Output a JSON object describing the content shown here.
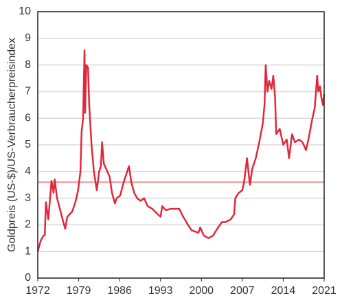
{
  "chart_data": {
    "type": "line",
    "ylabel": "Goldpreis (US-$)/US-Verbraucherpreisindex",
    "x": [
      1972,
      1972.5,
      1973,
      1973.2,
      1973.4,
      1973.8,
      1974.35,
      1974.7,
      1974.9,
      1975.3,
      1975.9,
      1976.5,
      1976.7,
      1977.05,
      1977.9,
      1978.5,
      1978.9,
      1979.3,
      1979.5,
      1979.75,
      1980.0,
      1980.1,
      1980.3,
      1980.6,
      1980.8,
      1981.2,
      1981.6,
      1982.1,
      1982.5,
      1982.8,
      1983.0,
      1983.3,
      1983.7,
      1984.3,
      1984.7,
      1985.2,
      1985.5,
      1986.1,
      1986.7,
      1987.3,
      1987.6,
      1988.0,
      1988.5,
      1989.0,
      1989.6,
      1990.2,
      1990.8,
      1991.6,
      1992.5,
      1993.0,
      1993.3,
      1993.9,
      1994.8,
      1996.2,
      1996.9,
      1997.7,
      1998.3,
      1999.5,
      1999.8,
      2000.4,
      2001.2,
      2002.0,
      2002.7,
      2003.5,
      2004.1,
      2005.0,
      2005.6,
      2005.8,
      2006.4,
      2007.0,
      2007.3,
      2007.8,
      2008.0,
      2008.3,
      2008.7,
      2009.3,
      2009.9,
      2010.5,
      2010.8,
      2011.0,
      2011.3,
      2011.6,
      2012.0,
      2012.3,
      2012.6,
      2012.8,
      2013.4,
      2014.0,
      2014.6,
      2015.0,
      2015.5,
      2016.0,
      2016.7,
      2017.3,
      2017.9,
      2018.4,
      2018.9,
      2019.4,
      2019.8,
      2020.0,
      2020.3,
      2020.5,
      2020.8,
      2021.0
    ],
    "series": [
      {
        "name": "Goldpreis/VPI",
        "color": "#e0283a",
        "values": [
          1.0,
          1.4,
          1.6,
          1.6,
          2.85,
          2.2,
          3.65,
          3.2,
          3.7,
          3.0,
          2.5,
          2.0,
          1.85,
          2.3,
          2.5,
          2.9,
          3.3,
          4.0,
          5.5,
          6.0,
          8.55,
          6.2,
          8.0,
          7.9,
          6.5,
          5.0,
          4.0,
          3.3,
          4.0,
          4.2,
          5.1,
          4.3,
          4.1,
          3.8,
          3.2,
          2.8,
          3.0,
          3.1,
          3.6,
          4.0,
          4.2,
          3.6,
          3.2,
          3.0,
          2.9,
          3.0,
          2.7,
          2.6,
          2.4,
          2.3,
          2.7,
          2.55,
          2.6,
          2.6,
          2.3,
          2.0,
          1.8,
          1.7,
          1.9,
          1.6,
          1.5,
          1.6,
          1.85,
          2.1,
          2.1,
          2.2,
          2.4,
          3.0,
          3.2,
          3.3,
          3.6,
          4.5,
          4.1,
          3.5,
          4.1,
          4.5,
          5.1,
          5.8,
          6.5,
          8.0,
          7.0,
          7.4,
          7.1,
          7.6,
          6.8,
          5.4,
          5.6,
          5.0,
          5.2,
          4.5,
          5.4,
          5.1,
          5.2,
          5.1,
          4.8,
          5.3,
          5.9,
          6.4,
          7.6,
          7.0,
          7.2,
          6.8,
          6.5,
          6.9
        ]
      }
    ],
    "hline": {
      "value": 3.6,
      "color": "#eba4a4"
    },
    "xlim": [
      1972,
      2021
    ],
    "xticks": [
      1972,
      1979,
      1986,
      1993,
      2000,
      2007,
      2014,
      2021
    ],
    "ylim": [
      0,
      10
    ],
    "yticks": [
      0,
      1,
      2,
      3,
      4,
      5,
      6,
      7,
      8,
      9,
      10
    ],
    "grid": true
  }
}
